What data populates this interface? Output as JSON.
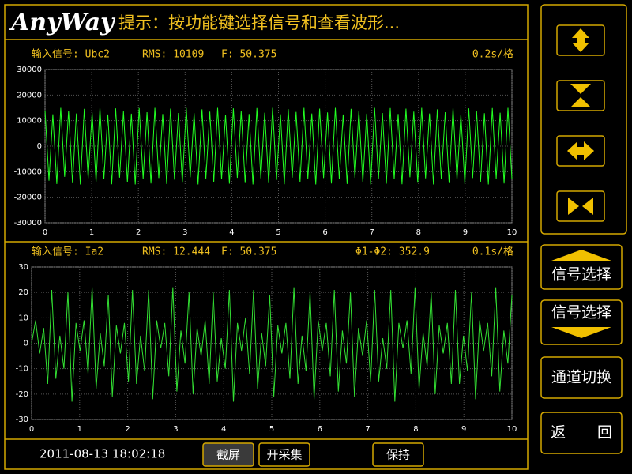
{
  "header": {
    "logo": "AnyWay",
    "prompt": "提示：按功能键选择信号和查看波形..."
  },
  "chart_data": [
    {
      "type": "line",
      "annotations": [
        "输入信号: Ubc2",
        "RMS: 10109",
        "F: 50.375"
      ],
      "scale_label": "0.2s/格",
      "xlim": [
        0,
        10
      ],
      "xticks": [
        0,
        1,
        2,
        3,
        4,
        5,
        6,
        7,
        8,
        9,
        10
      ],
      "ylim": [
        -30000,
        30000
      ],
      "yticks": [
        -30000,
        -20000,
        -10000,
        0,
        10000,
        20000,
        30000
      ],
      "grid": true,
      "series": [
        {
          "color": "#22ff22",
          "values": [
            14000,
            -13500,
            12500,
            -14800,
            15000,
            -12000,
            13800,
            -14500,
            12800,
            -15000,
            14600,
            -12600,
            13200,
            -14000,
            15000,
            -13000,
            12400,
            -14900,
            14800,
            -12300,
            13600,
            -14200,
            12700,
            -15000,
            14900,
            -12800,
            13300,
            -14600,
            15000,
            -12500,
            12600,
            -14800,
            14700,
            -13100,
            13000,
            -14300,
            15000,
            -12200,
            12900,
            -15000,
            14400,
            -12700,
            13500,
            -14100,
            15000,
            -12900,
            12300,
            -14700,
            14800,
            -12400,
            13700,
            -14400,
            12600,
            -15000,
            14900,
            -12600,
            13100,
            -14500,
            15000,
            -13200,
            12500,
            -14900,
            14500,
            -12300,
            13400,
            -14000,
            15000,
            -12800,
            12800,
            -15000,
            14700,
            -12500,
            13200,
            -14600,
            15000,
            -13000,
            12400,
            -14800,
            14600,
            -12400,
            13800,
            -14200,
            12700,
            -15000,
            15000,
            -12700,
            13000,
            -14700,
            14900,
            -12900,
            12600,
            -14900,
            14700,
            -12200,
            13500,
            -14300,
            15000,
            -12600,
            12800,
            -15000,
            14400,
            -12800,
            13300,
            -14400,
            15000,
            -13100,
            12300,
            -14800,
            14800,
            -12500,
            13600,
            -14100,
            12900,
            -15000,
            14900,
            -12700,
            13100,
            -14600,
            15000,
            -13000
          ]
        }
      ]
    },
    {
      "type": "line",
      "annotations": [
        "输入信号: Ia2",
        "RMS: 12.444",
        "F: 50.375",
        "Φ1-Φ2: 352.9"
      ],
      "scale_label": "0.1s/格",
      "xlim": [
        0,
        10
      ],
      "xticks": [
        0,
        1,
        2,
        3,
        4,
        5,
        6,
        7,
        8,
        9,
        10
      ],
      "ylim": [
        -30,
        30
      ],
      "yticks": [
        -30,
        -20,
        -10,
        0,
        10,
        20,
        30
      ],
      "grid": true,
      "series": [
        {
          "color": "#33e033",
          "values": [
            0,
            9,
            -4,
            6,
            -16,
            21,
            -14,
            3,
            -10,
            20,
            -23,
            8,
            -3,
            9,
            -12,
            22,
            -18,
            4,
            -9,
            19,
            -21,
            7,
            -4,
            8,
            -15,
            21,
            -16,
            3,
            -11,
            21,
            -22,
            9,
            -2,
            8,
            -13,
            22,
            -19,
            5,
            -8,
            20,
            -20,
            6,
            -5,
            9,
            -16,
            20,
            -15,
            2,
            -10,
            21,
            -23,
            8,
            -3,
            10,
            -12,
            21,
            -18,
            4,
            -9,
            19,
            -21,
            7,
            -4,
            8,
            -14,
            22,
            -16,
            3,
            -11,
            20,
            -22,
            9,
            -3,
            8,
            -13,
            21,
            -19,
            5,
            -8,
            20,
            -21,
            6,
            -5,
            9,
            -15,
            21,
            -15,
            2,
            -10,
            21,
            -23,
            8,
            -2,
            9,
            -12,
            22,
            -18,
            4,
            -9,
            20,
            -20,
            7,
            -4,
            8,
            -16,
            21,
            -16,
            3,
            -11,
            20,
            -22,
            9,
            -3,
            8,
            -13,
            22,
            -19,
            5,
            -8,
            19
          ]
        }
      ]
    }
  ],
  "footer": {
    "datetime": "2011-08-13 18:02:18",
    "buttons": [
      "截屏",
      "开采集",
      "保持"
    ]
  },
  "side_buttons": [
    "信号选择",
    "信号选择",
    "通道切换",
    "返 回"
  ]
}
